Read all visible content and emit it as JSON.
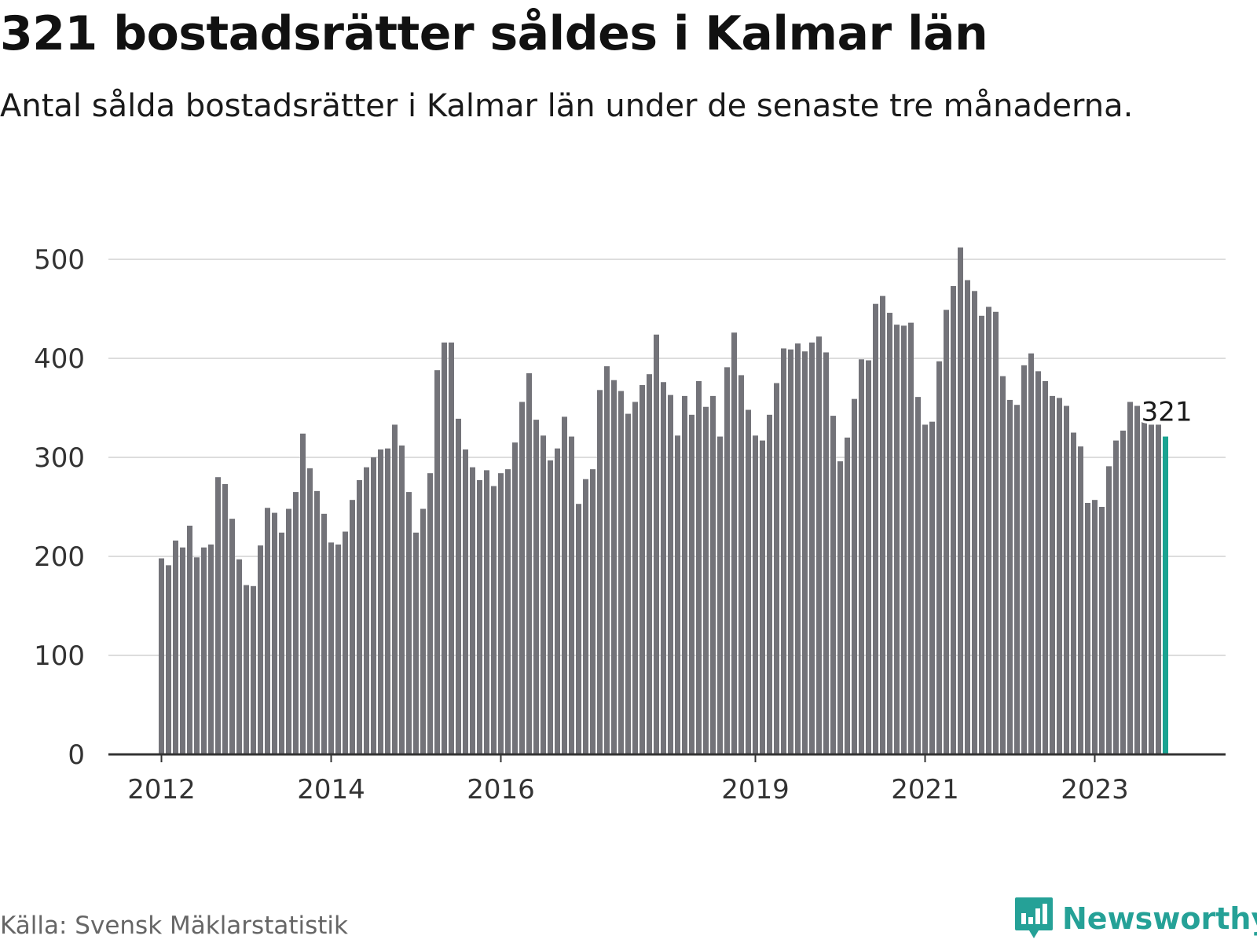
{
  "header": {
    "title": "321 bostadsrätter såldes i Kalmar län",
    "subtitle": "Antal sålda bostadsrätter i Kalmar län under de senaste tre månaderna."
  },
  "footer": {
    "source": "Källa: Svensk Mäklarstatistik",
    "brand": "Newsworthy"
  },
  "colors": {
    "bar": "#737379",
    "highlight": "#1aa391",
    "grid": "#dddddd",
    "axis": "#333333",
    "brand": "#25a197"
  },
  "chart_data": {
    "type": "bar",
    "title": "321 bostadsrätter såldes i Kalmar län",
    "subtitle": "Antal sålda bostadsrätter i Kalmar län under de senaste tre månaderna.",
    "xlabel": "",
    "ylabel": "",
    "ylim": [
      0,
      500
    ],
    "yticks": [
      0,
      100,
      200,
      300,
      400,
      500
    ],
    "grid": true,
    "x_tick_labels": [
      {
        "label": "2012",
        "index": 0
      },
      {
        "label": "2014",
        "index": 24
      },
      {
        "label": "2016",
        "index": 48
      },
      {
        "label": "2019",
        "index": 84
      },
      {
        "label": "2021",
        "index": 108
      },
      {
        "label": "2023",
        "index": 132
      }
    ],
    "highlight_index": 142,
    "highlight_label": "321",
    "values": [
      198,
      191,
      216,
      209,
      231,
      199,
      209,
      212,
      280,
      273,
      238,
      197,
      171,
      170,
      211,
      249,
      244,
      224,
      248,
      265,
      324,
      289,
      266,
      243,
      214,
      212,
      225,
      257,
      277,
      290,
      300,
      308,
      309,
      333,
      312,
      265,
      224,
      248,
      284,
      388,
      416,
      416,
      339,
      308,
      290,
      277,
      287,
      271,
      284,
      288,
      315,
      356,
      385,
      338,
      322,
      297,
      309,
      341,
      321,
      253,
      278,
      288,
      368,
      392,
      378,
      367,
      344,
      356,
      373,
      384,
      424,
      376,
      363,
      322,
      362,
      343,
      377,
      351,
      362,
      321,
      391,
      426,
      383,
      348,
      322,
      317,
      343,
      375,
      410,
      409,
      415,
      407,
      416,
      422,
      406,
      342,
      296,
      320,
      359,
      399,
      398,
      455,
      463,
      446,
      434,
      433,
      436,
      361,
      333,
      336,
      397,
      449,
      473,
      512,
      479,
      468,
      443,
      452,
      447,
      382,
      358,
      353,
      393,
      405,
      387,
      377,
      362,
      360,
      352,
      325,
      311,
      254,
      257,
      250,
      291,
      317,
      327,
      356,
      352,
      340,
      333,
      333,
      321
    ]
  }
}
